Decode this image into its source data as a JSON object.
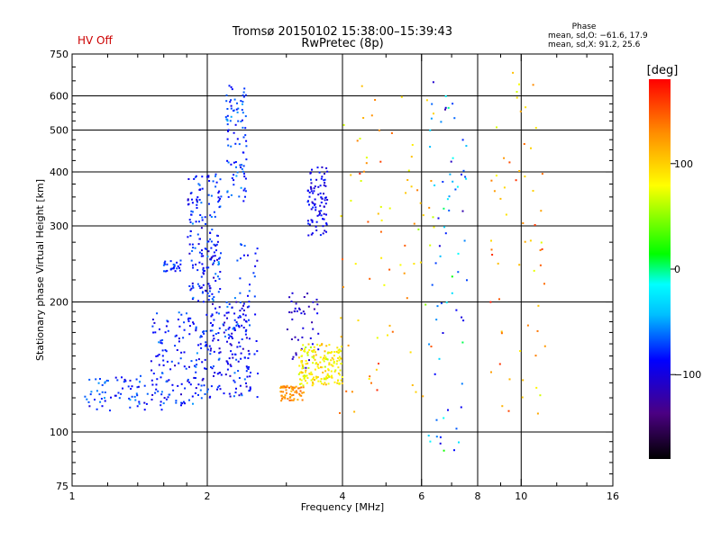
{
  "header": {
    "title": "Tromsø 20150102 15:38:00–15:39:43",
    "subtitle": "RwPretec (8p)",
    "hv_status": "HV Off",
    "hv_color": "#cc0000"
  },
  "phase_info": {
    "heading": "Phase",
    "line_o": "mean, sd,O: −61.6, 17.9",
    "line_x": "mean, sd,X:  91.2, 25.6"
  },
  "colorbar": {
    "unit_label": "[deg]",
    "ticks": [
      {
        "value": 100,
        "label": "100"
      },
      {
        "value": 0,
        "label": "0"
      },
      {
        "value": -100,
        "label": "−100"
      }
    ],
    "range": [
      -180,
      180
    ],
    "stops": [
      "#000000",
      "#4b0082",
      "#0000ff",
      "#00bfff",
      "#00ffff",
      "#00ff00",
      "#ffff00",
      "#ff8c00",
      "#ff0000"
    ]
  },
  "chart_data": {
    "type": "scatter",
    "xlabel": "Frequency [MHz]",
    "ylabel": "Stationary phase Virtual Height [km]",
    "x_scale": "log",
    "y_scale": "log",
    "xlim": [
      1,
      16
    ],
    "ylim": [
      75,
      750
    ],
    "xticks_major": [
      {
        "value": 1,
        "label": "1"
      },
      {
        "value": 2,
        "label": "2"
      },
      {
        "value": 4,
        "label": "4"
      },
      {
        "value": 6,
        "label": "6"
      },
      {
        "value": 8,
        "label": "8"
      },
      {
        "value": 10,
        "label": "10"
      },
      {
        "value": 16,
        "label": "16"
      }
    ],
    "xgrid": [
      2,
      4,
      6,
      8,
      10
    ],
    "yticks_major": [
      {
        "value": 75,
        "label": "75"
      },
      {
        "value": 100,
        "label": "100"
      },
      {
        "value": 200,
        "label": "200"
      },
      {
        "value": 300,
        "label": "300"
      },
      {
        "value": 400,
        "label": "400"
      },
      {
        "value": 500,
        "label": "500"
      },
      {
        "value": 600,
        "label": "600"
      },
      {
        "value": 750,
        "label": "750"
      }
    ],
    "ygrid": [
      100,
      200,
      300,
      400,
      500,
      600
    ],
    "clusters": [
      {
        "fmin": 1.05,
        "fmax": 1.6,
        "hmin": 112,
        "hmax": 135,
        "phase": -80,
        "sd": 20,
        "n": 70
      },
      {
        "fmin": 1.5,
        "fmax": 2.0,
        "hmin": 115,
        "hmax": 190,
        "phase": -85,
        "sd": 20,
        "n": 150
      },
      {
        "fmin": 1.6,
        "fmax": 1.75,
        "hmin": 235,
        "hmax": 250,
        "phase": -85,
        "sd": 15,
        "n": 25
      },
      {
        "fmin": 1.8,
        "fmax": 2.15,
        "hmin": 200,
        "hmax": 400,
        "phase": -85,
        "sd": 20,
        "n": 180
      },
      {
        "fmin": 2.0,
        "fmax": 2.5,
        "hmin": 120,
        "hmax": 200,
        "phase": -90,
        "sd": 22,
        "n": 150
      },
      {
        "fmin": 2.2,
        "fmax": 2.45,
        "hmin": 330,
        "hmax": 640,
        "phase": -80,
        "sd": 20,
        "n": 90
      },
      {
        "fmin": 2.3,
        "fmax": 2.6,
        "hmin": 120,
        "hmax": 280,
        "phase": -85,
        "sd": 20,
        "n": 50
      },
      {
        "fmin": 3.0,
        "fmax": 3.55,
        "hmin": 140,
        "hmax": 210,
        "phase": -110,
        "sd": 15,
        "n": 45
      },
      {
        "fmin": 2.9,
        "fmax": 3.3,
        "hmin": 118,
        "hmax": 128,
        "phase": 130,
        "sd": 15,
        "n": 60
      },
      {
        "fmin": 3.2,
        "fmax": 4.0,
        "hmin": 128,
        "hmax": 160,
        "phase": 85,
        "sd": 20,
        "n": 180
      },
      {
        "fmin": 3.35,
        "fmax": 3.7,
        "hmin": 285,
        "hmax": 410,
        "phase": -95,
        "sd": 15,
        "n": 90
      },
      {
        "fmin": 3.9,
        "fmax": 6.5,
        "hmin": 110,
        "hmax": 650,
        "phase": 110,
        "sd": 40,
        "n": 80
      },
      {
        "fmin": 6.2,
        "fmax": 7.6,
        "hmin": 90,
        "hmax": 650,
        "phase": -60,
        "sd": 50,
        "n": 70
      },
      {
        "fmin": 8.5,
        "fmax": 11.5,
        "hmin": 105,
        "hmax": 680,
        "phase": 120,
        "sd": 40,
        "n": 60
      }
    ]
  }
}
